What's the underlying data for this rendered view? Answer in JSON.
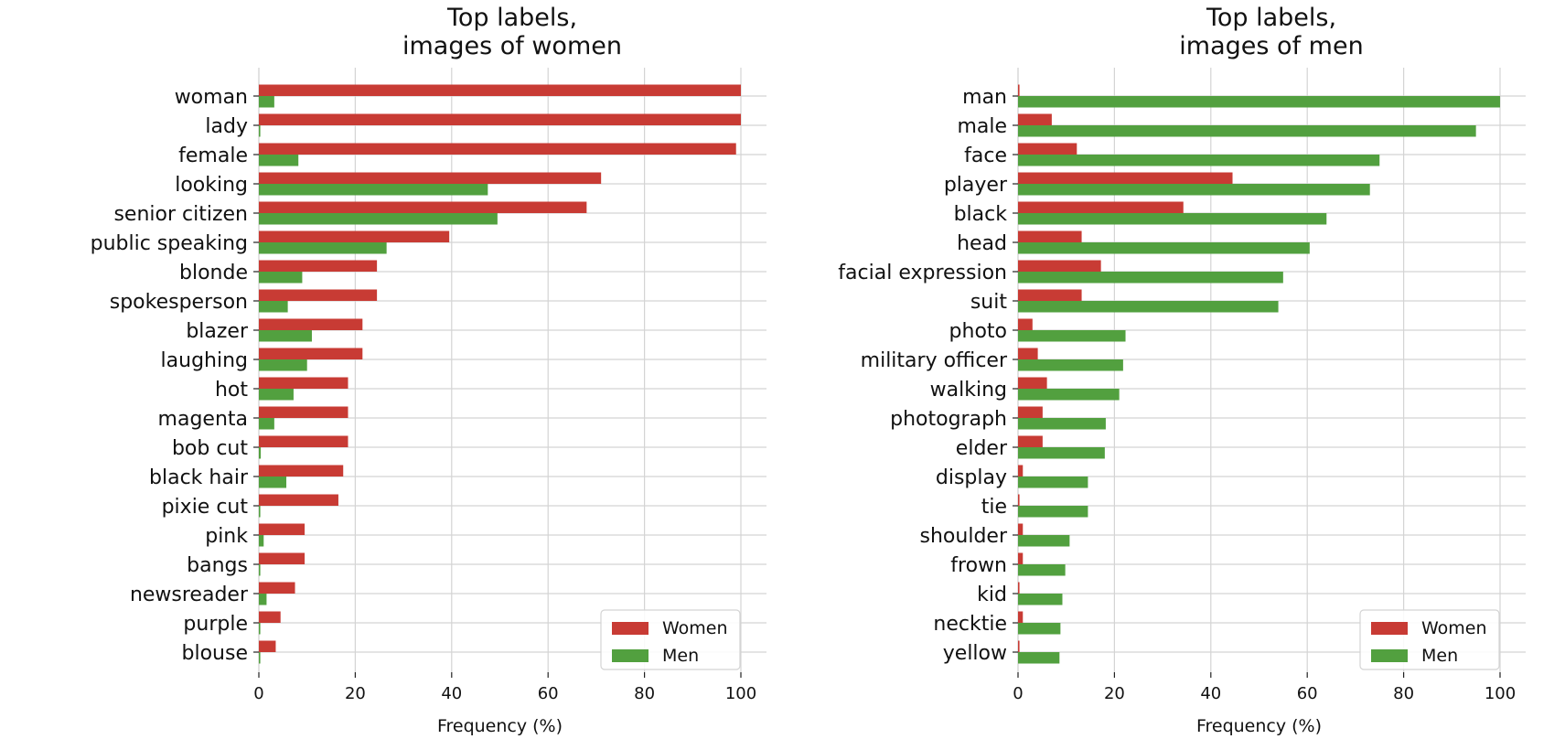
{
  "colors": {
    "women": "#c83b34",
    "men": "#52a03f"
  },
  "chart_data": [
    {
      "type": "bar",
      "orientation": "horizontal",
      "title": "Top labels,\nimages of women",
      "xlabel": "Frequency (%)",
      "ylabel": "",
      "xlim": [
        0,
        100
      ],
      "xticks": [
        0,
        20,
        40,
        60,
        80,
        100
      ],
      "grid": true,
      "legend": "lower-right",
      "categories": [
        "woman",
        "lady",
        "female",
        "looking",
        "senior citizen",
        "public speaking",
        "blonde",
        "spokesperson",
        "blazer",
        "laughing",
        "hot",
        "magenta",
        "bob cut",
        "black hair",
        "pixie cut",
        "pink",
        "bangs",
        "newsreader",
        "purple",
        "blouse"
      ],
      "series": [
        {
          "name": "Women",
          "values": [
            100,
            100,
            99,
            71,
            68,
            39.5,
            24.5,
            24.5,
            21.5,
            21.5,
            18.5,
            18.5,
            18.5,
            17.5,
            16.5,
            9.5,
            9.5,
            7.5,
            4.5,
            3.5
          ]
        },
        {
          "name": "Men",
          "values": [
            3.2,
            0.3,
            8.2,
            47.5,
            49.5,
            26.5,
            9,
            6,
            11,
            10,
            7.2,
            3.2,
            0.4,
            5.7,
            0.3,
            1,
            0.3,
            1.6,
            0.3,
            0.3
          ]
        }
      ]
    },
    {
      "type": "bar",
      "orientation": "horizontal",
      "title": "Top labels,\nimages of men",
      "xlabel": "Frequency (%)",
      "ylabel": "",
      "xlim": [
        0,
        100
      ],
      "xticks": [
        0,
        20,
        40,
        60,
        80,
        100
      ],
      "grid": true,
      "legend": "lower-right",
      "categories": [
        "man",
        "male",
        "face",
        "player",
        "black",
        "head",
        "facial expression",
        "suit",
        "photo",
        "military officer",
        "walking",
        "photograph",
        "elder",
        "display",
        "tie",
        "shoulder",
        "frown",
        "kid",
        "necktie",
        "yellow"
      ],
      "series": [
        {
          "name": "Women",
          "values": [
            0.3,
            7,
            12.2,
            44.5,
            34.3,
            13.2,
            17.2,
            13.2,
            3,
            4.1,
            6,
            5.1,
            5.1,
            1,
            0.3,
            1,
            1,
            0.3,
            1,
            0.3
          ]
        },
        {
          "name": "Men",
          "values": [
            100,
            95,
            75,
            73,
            64,
            60.5,
            55,
            54,
            22.3,
            21.8,
            21,
            18.2,
            18,
            14.5,
            14.5,
            10.7,
            9.8,
            9.2,
            8.8,
            8.6
          ]
        }
      ]
    }
  ]
}
